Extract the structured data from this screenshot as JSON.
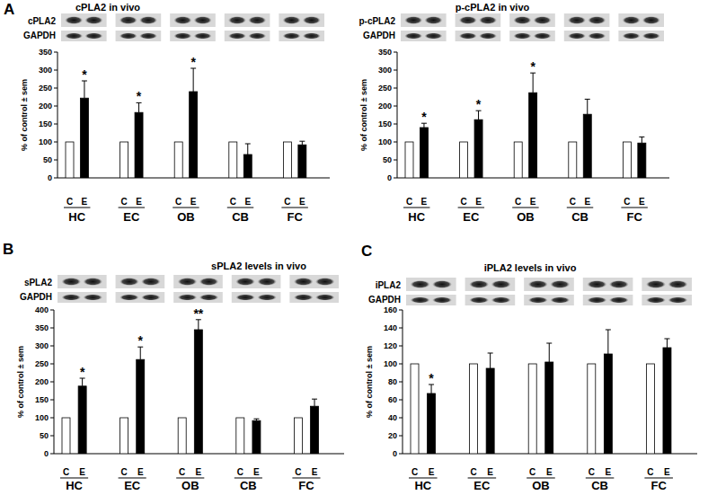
{
  "chart_data": [
    {
      "type": "bar",
      "panel_label": "A",
      "title": "cPLA2 in vivo",
      "blot_labels": [
        "cPLA2",
        "GAPDH"
      ],
      "y_label": "% of control ± sem",
      "categories": [
        "HC",
        "EC",
        "OB",
        "CB",
        "FC"
      ],
      "series": [
        {
          "name": "C",
          "color": "#ffffff",
          "values": [
            100,
            100,
            100,
            100,
            100
          ]
        },
        {
          "name": "E",
          "color": "#000000",
          "values": [
            222,
            182,
            240,
            65,
            92
          ],
          "errors": [
            48,
            27,
            65,
            30,
            10
          ],
          "significance": [
            "*",
            "*",
            "*",
            null,
            null
          ]
        }
      ],
      "ylim": [
        0,
        350
      ],
      "yticks": [
        0,
        50,
        100,
        150,
        200,
        250,
        300,
        350
      ],
      "grid": false
    },
    {
      "type": "bar",
      "title": "p-cPLA2 in vivo",
      "blot_labels": [
        "p-cPLA2",
        "GAPDH"
      ],
      "y_label": "% of control ± sem",
      "categories": [
        "HC",
        "EC",
        "OB",
        "CB",
        "FC"
      ],
      "series": [
        {
          "name": "C",
          "color": "#ffffff",
          "values": [
            100,
            100,
            100,
            100,
            100
          ]
        },
        {
          "name": "E",
          "color": "#000000",
          "values": [
            140,
            162,
            237,
            177,
            97
          ],
          "errors": [
            12,
            25,
            55,
            42,
            17
          ],
          "significance": [
            "*",
            "*",
            "*",
            null,
            null
          ]
        }
      ],
      "ylim": [
        0,
        350
      ],
      "yticks": [
        0,
        50,
        100,
        150,
        200,
        250,
        300,
        350
      ],
      "grid": false
    },
    {
      "type": "bar",
      "panel_label": "B",
      "title": "sPLA2 levels in vivo",
      "blot_labels": [
        "sPLA2",
        "GAPDH"
      ],
      "y_label": "% of control ± sem",
      "categories": [
        "HC",
        "EC",
        "OB",
        "CB",
        "FC"
      ],
      "series": [
        {
          "name": "C",
          "color": "#ffffff",
          "values": [
            100,
            100,
            100,
            100,
            100
          ]
        },
        {
          "name": "E",
          "color": "#000000",
          "values": [
            188,
            262,
            345,
            92,
            132
          ],
          "errors": [
            22,
            35,
            28,
            5,
            20
          ],
          "significance": [
            "*",
            "*",
            "**",
            null,
            null
          ]
        }
      ],
      "ylim": [
        0,
        400
      ],
      "yticks": [
        0,
        50,
        100,
        150,
        200,
        250,
        300,
        350,
        400
      ],
      "grid": false
    },
    {
      "type": "bar",
      "panel_label": "C",
      "title": "iPLA2 levels in vivo",
      "blot_labels": [
        "iPLA2",
        "GAPDH"
      ],
      "y_label": "% of control ± sem",
      "categories": [
        "HC",
        "EC",
        "OB",
        "CB",
        "FC"
      ],
      "series": [
        {
          "name": "C",
          "color": "#ffffff",
          "values": [
            100,
            100,
            100,
            100,
            100
          ]
        },
        {
          "name": "E",
          "color": "#000000",
          "values": [
            67,
            95,
            102,
            111,
            118
          ],
          "errors": [
            10,
            17,
            21,
            27,
            10
          ],
          "significance": [
            "*",
            null,
            null,
            null,
            null
          ]
        }
      ],
      "ylim": [
        0,
        160
      ],
      "yticks": [
        0,
        20,
        40,
        60,
        80,
        100,
        120,
        140,
        160
      ],
      "grid": false
    }
  ]
}
